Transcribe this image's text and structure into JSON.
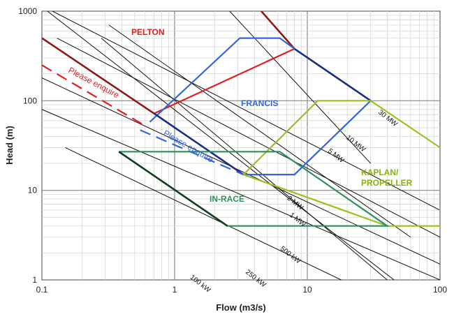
{
  "chart_data": {
    "type": "line",
    "title": "",
    "xlabel": "Flow (m3/s)",
    "ylabel": "Head (m)",
    "x_scale": "log",
    "y_scale": "log",
    "xlim": [
      0.1,
      100
    ],
    "ylim": [
      1,
      1000
    ],
    "x_ticks": [
      {
        "value": 0.1,
        "label": "0.1"
      },
      {
        "value": 1,
        "label": "1"
      },
      {
        "value": 10,
        "label": "10"
      },
      {
        "value": 100,
        "label": "100"
      }
    ],
    "y_ticks": [
      {
        "value": 1,
        "label": "1"
      },
      {
        "value": 10,
        "label": "10"
      },
      {
        "value": 100,
        "label": "100"
      },
      {
        "value": 1000,
        "label": "1000"
      }
    ],
    "grid": true,
    "colors": {
      "pelton": "#e02020",
      "francis": "#3366dd",
      "kaplan": "#99c21c",
      "inrace": "#2f8f5e",
      "iso_line": "#111111",
      "pelton_envelope": "#8b1a1a",
      "francis_envelope": "#1a2f80",
      "inrace_envelope": "#0f3d20"
    },
    "power_lines": [
      {
        "label": "100 kW",
        "anchor": [
          1.3,
          1.05
        ]
      },
      {
        "label": "250 kW",
        "anchor": [
          3.4,
          1.2
        ]
      },
      {
        "label": "500 kW",
        "anchor": [
          6.2,
          2.2
        ]
      },
      {
        "label": "1 MW",
        "anchor": [
          7.3,
          5.2
        ]
      },
      {
        "label": "2 MW",
        "anchor": [
          7.0,
          8.0
        ]
      },
      {
        "label": "5 MW",
        "anchor": [
          14.2,
          27
        ]
      },
      {
        "label": "10 MW",
        "anchor": [
          19.5,
          38
        ]
      },
      {
        "label": "30 MW",
        "anchor": [
          34,
          73
        ]
      }
    ],
    "iso_lines": [
      {
        "x": [
          2.6,
          30
        ],
        "y": [
          1000,
          20
        ]
      },
      {
        "x": [
          0.28,
          40
        ],
        "y": [
          500,
          1
        ]
      },
      {
        "x": [
          0.11,
          45
        ],
        "y": [
          1000,
          1
        ]
      },
      {
        "x": [
          0.32,
          60
        ],
        "y": [
          700,
          3
        ]
      },
      {
        "x": [
          0.12,
          100
        ],
        "y": [
          1000,
          6
        ]
      },
      {
        "x": [
          0.13,
          100
        ],
        "y": [
          500,
          3
        ]
      },
      {
        "x": [
          0.1,
          100
        ],
        "y": [
          180,
          1.5
        ]
      },
      {
        "x": [
          0.1,
          100
        ],
        "y": [
          80,
          1
        ]
      },
      {
        "x": [
          0.15,
          18
        ],
        "y": [
          30,
          1
        ]
      }
    ],
    "series": [
      {
        "name": "PELTON",
        "style": "solid",
        "x": [
          0.7,
          8.0
        ],
        "y": [
          72,
          380
        ]
      },
      {
        "name": "PELTON",
        "style": "envelope",
        "x": [
          0.1,
          0.7
        ],
        "y": [
          500,
          72
        ]
      },
      {
        "name": "PELTON",
        "style": "envelope",
        "x": [
          4.5,
          8.0
        ],
        "y": [
          1000,
          380
        ]
      },
      {
        "name": "PELTON",
        "style": "dashed",
        "x": [
          0.1,
          0.57
        ],
        "y": [
          250,
          55
        ]
      },
      {
        "name": "FRANCIS",
        "style": "solid",
        "x": [
          0.65,
          3.1,
          6.2,
          8.0,
          30,
          8.0,
          3.3
        ],
        "y": [
          58,
          500,
          500,
          380,
          100,
          15,
          15
        ]
      },
      {
        "name": "FRANCIS",
        "style": "envelope",
        "x": [
          0.7,
          3.3
        ],
        "y": [
          72,
          15
        ]
      },
      {
        "name": "FRANCIS",
        "style": "envelope",
        "x": [
          8.0,
          30
        ],
        "y": [
          380,
          100
        ]
      },
      {
        "name": "FRANCIS",
        "style": "dashed",
        "x": [
          0.55,
          3.3
        ],
        "y": [
          47,
          15
        ]
      },
      {
        "name": "KAPLAN/PROPELLER",
        "style": "solid",
        "x": [
          3.3,
          12,
          30,
          100,
          100,
          40,
          3.3
        ],
        "y": [
          15,
          100,
          100,
          30,
          4,
          4,
          15
        ]
      },
      {
        "name": "IN-RACE",
        "style": "solid",
        "x": [
          0.38,
          6.2,
          40,
          2.5,
          0.38
        ],
        "y": [
          27,
          27,
          4,
          4,
          27
        ]
      },
      {
        "name": "IN-RACE",
        "style": "envelope",
        "x": [
          0.38,
          2.5
        ],
        "y": [
          27,
          4
        ]
      }
    ],
    "annotations": {
      "pelton": "PELTON",
      "francis": "FRANCIS",
      "kaplan_1": "KAPLAN/",
      "kaplan_2": "PROPELLER",
      "inrace": "IN-RACE",
      "enquire_pelton": "Please enquire",
      "enquire_francis": "Please enquire"
    }
  }
}
